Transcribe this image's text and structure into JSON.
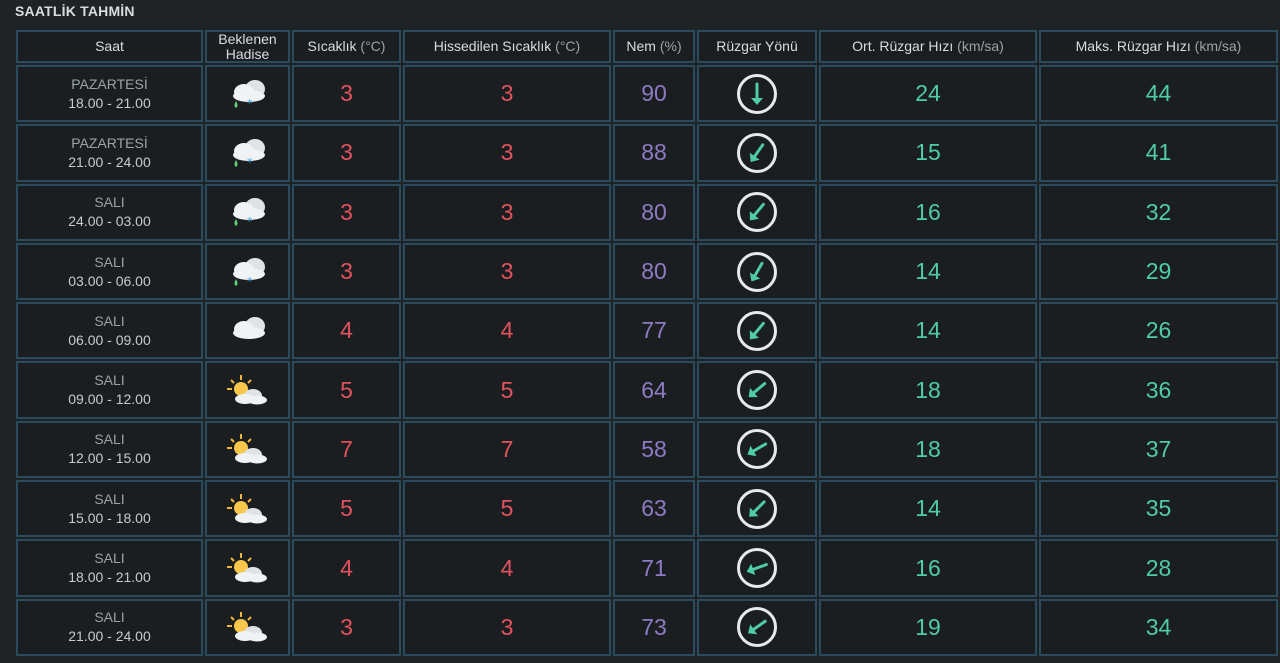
{
  "title": "SAATLİK TAHMİN",
  "headers": {
    "saat": "Saat",
    "hadise_1": "Beklenen",
    "hadise_2": "Hadise",
    "sicaklik": "Sıcaklık",
    "sicaklik_unit": "(°C)",
    "hissedilen": "Hissedilen Sıcaklık",
    "hissedilen_unit": "(°C)",
    "nem": "Nem",
    "nem_unit": "(%)",
    "ruzgar_yonu": "Rüzgar Yönü",
    "ort_ruzgar": "Ort. Rüzgar Hızı",
    "ort_ruzgar_unit": "(km/sa)",
    "maks_ruzgar": "Maks. Rüzgar Hızı",
    "maks_ruzgar_unit": "(km/sa)"
  },
  "colors": {
    "temperature": "#e2525e",
    "humidity": "#8e7bc4",
    "wind": "#4fcca6",
    "border": "#2a4a5e"
  },
  "rows": [
    {
      "day": "PAZARTESİ",
      "time": "18.00 - 21.00",
      "icon": "sleet-cloud-icon",
      "temp": "3",
      "feels": "3",
      "humidity": "90",
      "wind_dir_deg": 0,
      "wind_avg": "24",
      "wind_max": "44"
    },
    {
      "day": "PAZARTESİ",
      "time": "21.00 - 24.00",
      "icon": "sleet-cloud-icon",
      "temp": "3",
      "feels": "3",
      "humidity": "88",
      "wind_dir_deg": 35,
      "wind_avg": "15",
      "wind_max": "41"
    },
    {
      "day": "SALI",
      "time": "24.00 - 03.00",
      "icon": "sleet-cloud-icon",
      "temp": "3",
      "feels": "3",
      "humidity": "80",
      "wind_dir_deg": 40,
      "wind_avg": "16",
      "wind_max": "32"
    },
    {
      "day": "SALI",
      "time": "03.00 - 06.00",
      "icon": "sleet-cloud-icon",
      "temp": "3",
      "feels": "3",
      "humidity": "80",
      "wind_dir_deg": 30,
      "wind_avg": "14",
      "wind_max": "29"
    },
    {
      "day": "SALI",
      "time": "06.00 - 09.00",
      "icon": "cloud-icon",
      "temp": "4",
      "feels": "4",
      "humidity": "77",
      "wind_dir_deg": 40,
      "wind_avg": "14",
      "wind_max": "26"
    },
    {
      "day": "SALI",
      "time": "09.00 - 12.00",
      "icon": "partly-cloudy-icon",
      "temp": "5",
      "feels": "5",
      "humidity": "64",
      "wind_dir_deg": 50,
      "wind_avg": "18",
      "wind_max": "36"
    },
    {
      "day": "SALI",
      "time": "12.00 - 15.00",
      "icon": "partly-cloudy-icon",
      "temp": "7",
      "feels": "7",
      "humidity": "58",
      "wind_dir_deg": 60,
      "wind_avg": "18",
      "wind_max": "37"
    },
    {
      "day": "SALI",
      "time": "15.00 - 18.00",
      "icon": "partly-cloudy-icon",
      "temp": "5",
      "feels": "5",
      "humidity": "63",
      "wind_dir_deg": 45,
      "wind_avg": "14",
      "wind_max": "35"
    },
    {
      "day": "SALI",
      "time": "18.00 - 21.00",
      "icon": "partly-cloudy-icon",
      "temp": "4",
      "feels": "4",
      "humidity": "71",
      "wind_dir_deg": 70,
      "wind_avg": "16",
      "wind_max": "28"
    },
    {
      "day": "SALI",
      "time": "21.00 - 24.00",
      "icon": "partly-cloudy-icon",
      "temp": "3",
      "feels": "3",
      "humidity": "73",
      "wind_dir_deg": 55,
      "wind_avg": "19",
      "wind_max": "34"
    }
  ]
}
